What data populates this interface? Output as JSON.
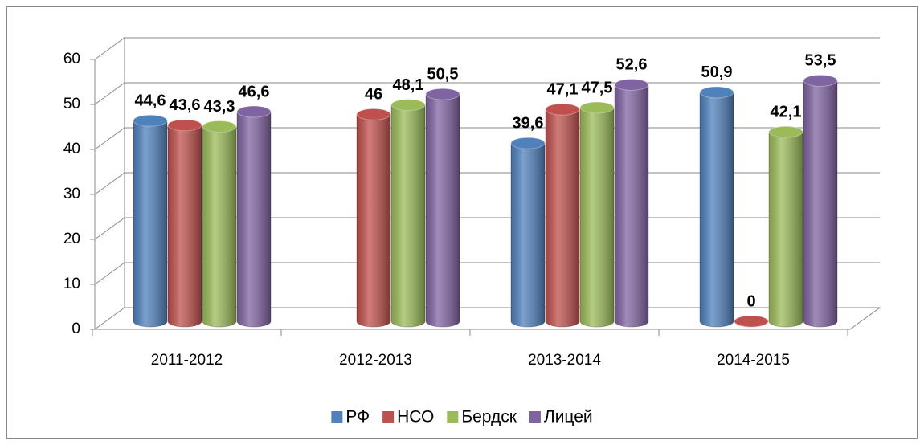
{
  "chart_data": {
    "type": "bar",
    "style": "3d-cylinder",
    "categories": [
      "2011-2012",
      "2012-2013",
      "2013-2014",
      "2014-2015"
    ],
    "series": [
      {
        "name": "РФ",
        "color": "#4f81bd",
        "values": [
          44.6,
          null,
          39.6,
          50.9
        ],
        "value_labels": [
          "44,6",
          null,
          "39,6",
          "50,9"
        ]
      },
      {
        "name": "НСО",
        "color": "#c0504d",
        "values": [
          43.6,
          46,
          47.1,
          0
        ],
        "value_labels": [
          "43,6",
          "46",
          "47,1",
          "0"
        ]
      },
      {
        "name": "Бердск",
        "color": "#9bbb59",
        "values": [
          43.3,
          48.1,
          47.5,
          42.1
        ],
        "value_labels": [
          "43,3",
          "48,1",
          "47,5",
          "42,1"
        ]
      },
      {
        "name": "Лицей",
        "color": "#8064a2",
        "values": [
          46.6,
          50.5,
          52.6,
          53.5
        ],
        "value_labels": [
          "46,6",
          "50,5",
          "52,6",
          "53,5"
        ]
      }
    ],
    "ylim": [
      0,
      60
    ],
    "yticks": [
      0,
      10,
      20,
      30,
      40,
      50,
      60
    ],
    "grid": true,
    "legend": "bottom"
  }
}
